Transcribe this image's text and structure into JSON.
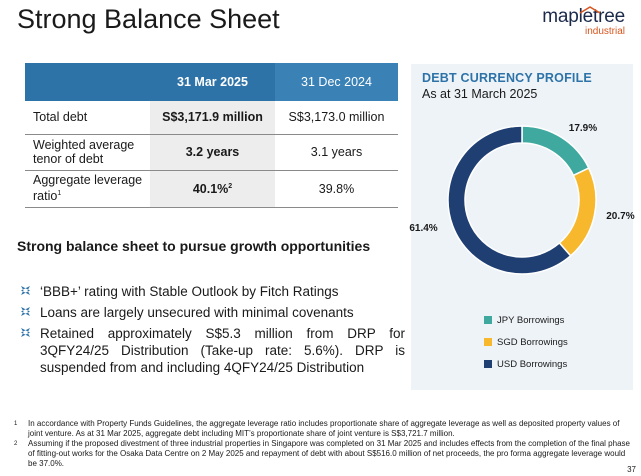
{
  "slide": {
    "title": "Strong Balance Sheet",
    "page_number": "37"
  },
  "logo": {
    "name": "mapletree",
    "sub": "industrial",
    "accent": "#d8561e"
  },
  "table": {
    "headers": [
      "",
      "31 Mar 2025",
      "31 Dec 2024"
    ],
    "rows": [
      {
        "label": "Total debt",
        "cur": "S$3,171.9 million",
        "prev": "S$3,173.0 million"
      },
      {
        "label": "Weighted average tenor of debt",
        "cur": "3.2 years",
        "prev": "3.1 years"
      },
      {
        "label": "Aggregate leverage ratio",
        "label_note": "1",
        "cur": "40.1%",
        "cur_note": "2",
        "prev": "39.8%"
      }
    ],
    "header_color": "#2e73a8"
  },
  "subheading": "Strong balance sheet to pursue growth opportunities",
  "bullets": [
    "‘BBB+’ rating with Stable Outlook by Fitch Ratings",
    "Loans are largely unsecured with minimal covenants",
    "Retained approximately S$5.3 million from DRP for 3QFY24/25 Distribution (Take-up rate: 5.6%). DRP is suspended from and including 4QFY24/25 Distribution"
  ],
  "chart_data": {
    "type": "pie",
    "title": "DEBT CURRENCY PROFILE",
    "subtitle": "As at 31 March 2025",
    "categories": [
      "JPY Borrowings",
      "SGD Borrowings",
      "USD Borrowings"
    ],
    "values": [
      17.9,
      20.7,
      61.4
    ],
    "labels": [
      "17.9%",
      "20.7%",
      "61.4%"
    ],
    "colors": [
      "#3fa9a0",
      "#f7b82e",
      "#1f3f73"
    ],
    "legend": "bottom"
  },
  "footnotes": [
    {
      "num": "1",
      "text": "In accordance with Property Funds Guidelines, the aggregate leverage ratio includes proportionate share of aggregate leverage as well as deposited property values of joint venture. As at 31 Mar 2025, aggregate debt including MIT’s proportionate share of joint venture is S$3,721.7 million."
    },
    {
      "num": "2",
      "text": "Assuming if the proposed divestment of three industrial properties in Singapore was completed on 31 Mar 2025 and includes effects from the completion of the final phase of fitting-out works for the Osaka Data Centre on 2 May 2025 and repayment of debt with about S$516.0 million of net proceeds, the pro forma aggregate leverage would be 37.0%."
    }
  ]
}
